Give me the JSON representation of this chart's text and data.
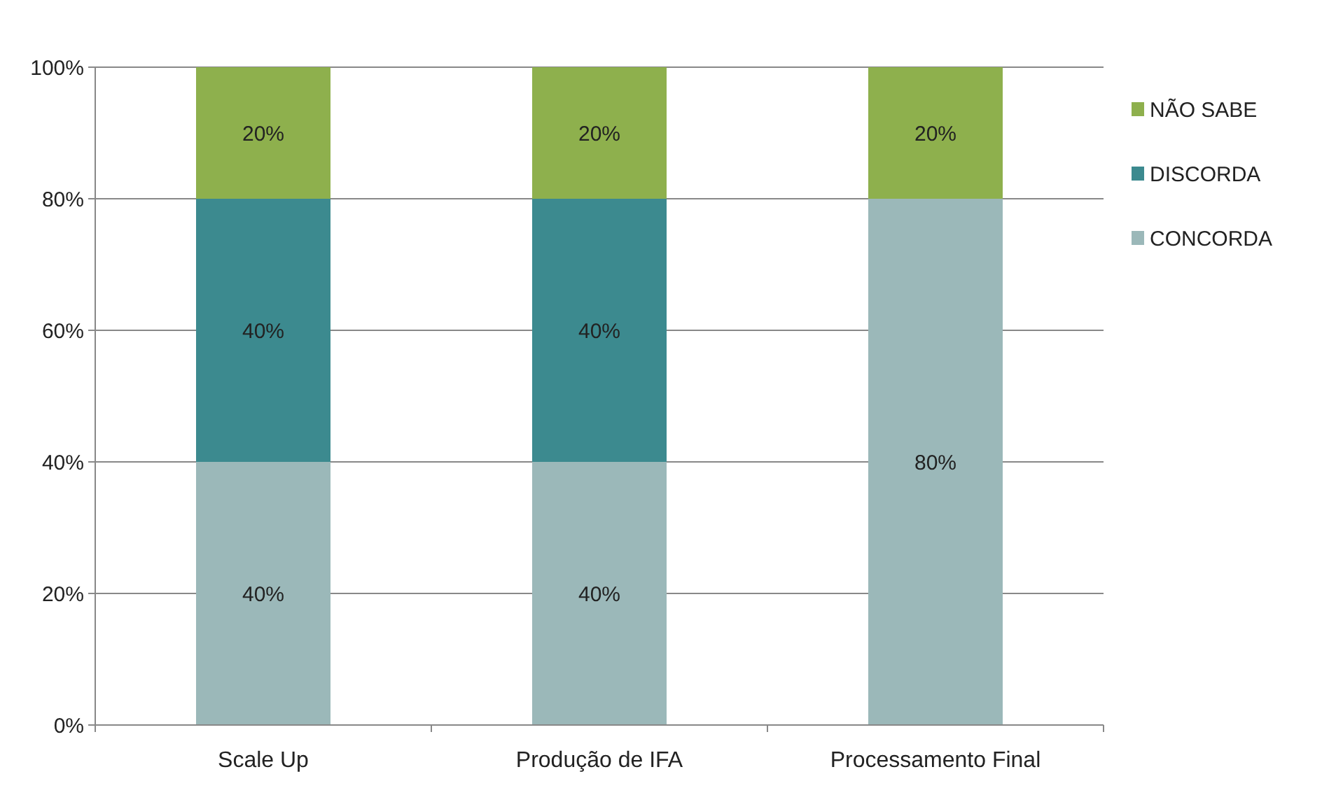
{
  "chart_data": {
    "type": "bar",
    "stacked": true,
    "categories": [
      "Scale Up",
      "Produção de IFA",
      "Processamento Final"
    ],
    "series": [
      {
        "name": "CONCORDA",
        "color": "#9bb8b9",
        "values": [
          40,
          40,
          80
        ],
        "value_labels": [
          "40%",
          "40%",
          "80%"
        ]
      },
      {
        "name": "DISCORDA",
        "color": "#3c8a8f",
        "values": [
          40,
          40,
          0
        ],
        "value_labels": [
          "40%",
          "40%",
          null
        ]
      },
      {
        "name": "NÃO SABE",
        "color": "#8eb04d",
        "values": [
          20,
          20,
          20
        ],
        "value_labels": [
          "20%",
          "20%",
          "20%"
        ]
      }
    ],
    "ylim": [
      0,
      100
    ],
    "yticks": [
      {
        "value": 0,
        "label": "0%"
      },
      {
        "value": 20,
        "label": "20%"
      },
      {
        "value": 40,
        "label": "40%"
      },
      {
        "value": 60,
        "label": "60%"
      },
      {
        "value": 80,
        "label": "80%"
      },
      {
        "value": 100,
        "label": "100%"
      }
    ],
    "grid": "y",
    "legend": "right"
  }
}
